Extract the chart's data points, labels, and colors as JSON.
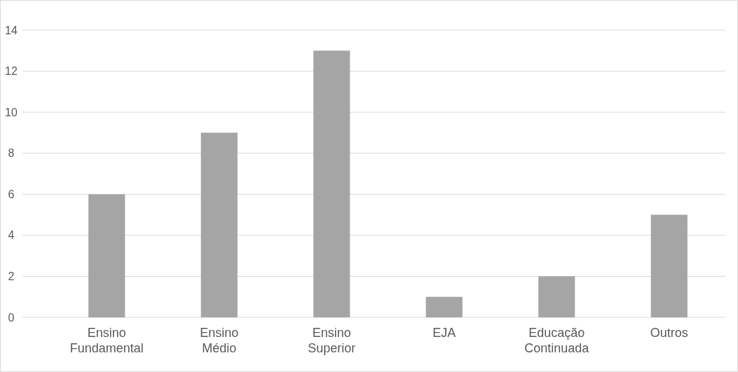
{
  "chart_data": {
    "type": "bar",
    "categories": [
      "Ensino Fundamental",
      "Ensino Médio",
      "Ensino Superior",
      "EJA",
      "Educação Continuada",
      "Outros"
    ],
    "values": [
      6,
      9,
      13,
      1,
      2,
      5
    ],
    "color": "#a5a5a5",
    "ylim": [
      0,
      14
    ],
    "yticks": [
      0,
      2,
      4,
      6,
      8,
      10,
      12,
      14
    ],
    "grid": "y"
  }
}
